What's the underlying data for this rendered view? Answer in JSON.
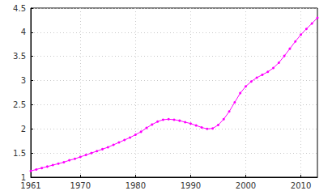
{
  "chart_data": {
    "type": "line",
    "x": [
      1961,
      1962,
      1963,
      1964,
      1965,
      1966,
      1967,
      1968,
      1969,
      1970,
      1971,
      1972,
      1973,
      1974,
      1975,
      1976,
      1977,
      1978,
      1979,
      1980,
      1981,
      1982,
      1983,
      1984,
      1985,
      1986,
      1987,
      1988,
      1989,
      1990,
      1991,
      1992,
      1993,
      1994,
      1995,
      1996,
      1997,
      1998,
      1999,
      2000,
      2001,
      2002,
      2003,
      2004,
      2005,
      2006,
      2007,
      2008,
      2009,
      2010,
      2011,
      2012,
      2013
    ],
    "values": [
      1.13,
      1.16,
      1.19,
      1.22,
      1.25,
      1.28,
      1.31,
      1.35,
      1.38,
      1.42,
      1.46,
      1.5,
      1.54,
      1.58,
      1.62,
      1.67,
      1.72,
      1.77,
      1.82,
      1.88,
      1.94,
      2.02,
      2.09,
      2.15,
      2.19,
      2.2,
      2.19,
      2.17,
      2.14,
      2.11,
      2.07,
      2.03,
      2.0,
      2.01,
      2.08,
      2.2,
      2.36,
      2.55,
      2.74,
      2.88,
      2.98,
      3.06,
      3.12,
      3.18,
      3.26,
      3.37,
      3.51,
      3.66,
      3.81,
      3.95,
      4.07,
      4.18,
      4.3
    ],
    "color": "#ff00ff",
    "marker": "circle",
    "line_style": "solid",
    "xlim": [
      1961,
      2013
    ],
    "xticks": [
      1961,
      1970,
      1980,
      1990,
      2000,
      2010
    ],
    "ylim": [
      1,
      4.5
    ],
    "yticks": [
      1,
      1.5,
      2,
      2.5,
      3,
      3.5,
      4,
      4.5
    ],
    "grid": true
  }
}
